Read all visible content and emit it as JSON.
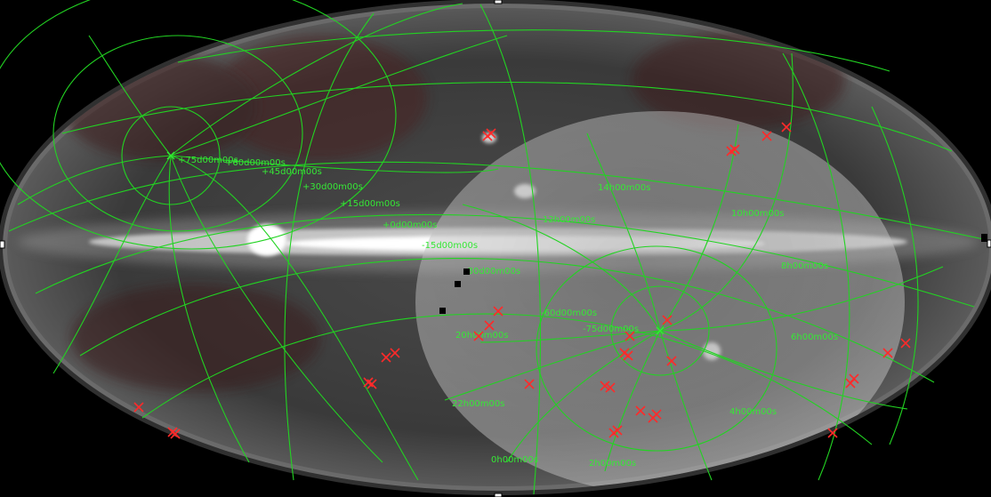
{
  "map": {
    "colors": {
      "sky_background": "#3c3c3c",
      "galactic_plane": "#f5f5f5",
      "grid": "#22d322",
      "grid_labels": "#36e836",
      "source_markers": "#ff2a2a",
      "overlay_disk": "#b0b0b0"
    },
    "declination_labels": [
      "+75d00m00s",
      "+60d00m00s",
      "+45d00m00s",
      "+30d00m00s",
      "+15d00m00s",
      "+0d00m00s",
      "-15d00m00s",
      "-30d00m00s",
      "-60d00m00s",
      "-75d00m00s"
    ],
    "right_ascension_labels": [
      "14h00m00s",
      "12h00m00s",
      "10h00m00s",
      "8h00m00s",
      "6h00m00s",
      "4h00m00s",
      "2h00m00s",
      "0h00m00s",
      "22h00m00s",
      "20h00m00s"
    ],
    "marker_icon": "red-x-icon",
    "square_icon": "black-square-icon"
  }
}
